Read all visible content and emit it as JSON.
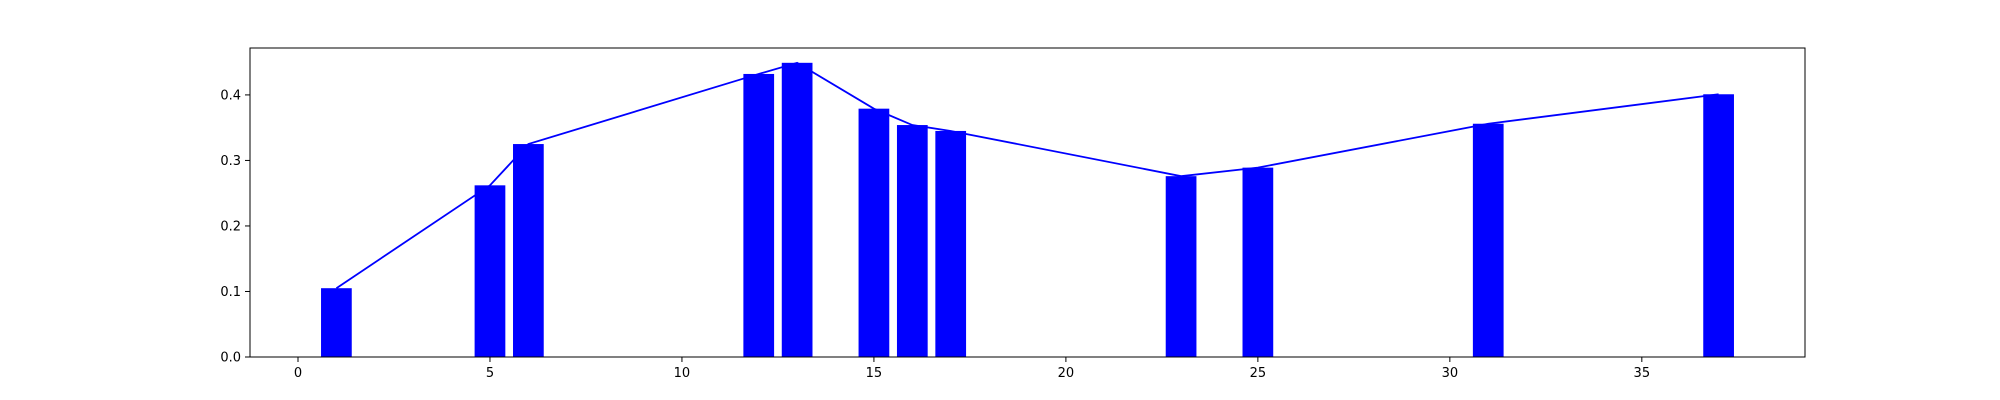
{
  "chart_data": {
    "type": "bar",
    "title": "",
    "xlabel": "",
    "ylabel": "",
    "xlim": [
      -1.25,
      39.25
    ],
    "ylim": [
      0,
      0.4716
    ],
    "grid": false,
    "bar_width": 0.8,
    "x_ticks": [
      0,
      5,
      10,
      15,
      20,
      25,
      30,
      35
    ],
    "y_ticks": [
      0.0,
      0.1,
      0.2,
      0.3,
      0.4
    ],
    "x_tick_labels": [
      "0",
      "5",
      "10",
      "15",
      "20",
      "25",
      "30",
      "35"
    ],
    "y_tick_labels": [
      "0.0",
      "0.1",
      "0.2",
      "0.3",
      "0.4"
    ],
    "x": [
      1,
      5,
      6,
      12,
      13,
      15,
      16,
      17,
      23,
      25,
      31,
      37
    ],
    "values": [
      0.105,
      0.262,
      0.325,
      0.432,
      0.449,
      0.379,
      0.354,
      0.345,
      0.276,
      0.289,
      0.356,
      0.401
    ],
    "series": [
      {
        "type": "bar",
        "color": "#0000ff"
      },
      {
        "type": "line",
        "color": "#0000ff"
      }
    ]
  }
}
